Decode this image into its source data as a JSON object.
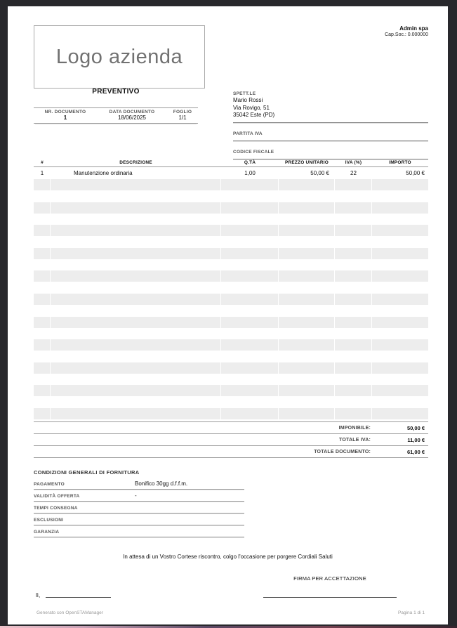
{
  "company": {
    "name": "Admin spa",
    "capital": "Cap.Soc.: 0.000000"
  },
  "logo_text": "Logo azienda",
  "doc": {
    "title": "PREVENTIVO",
    "info_headers": [
      "NR. DOCUMENTO",
      "DATA DOCUMENTO",
      "FOGLIO"
    ],
    "info_values": [
      "1",
      "18/06/2025",
      "1/1"
    ]
  },
  "customer": {
    "label": "SPETT.LE",
    "name": "Mario Rossi",
    "address": "Via Rovigo, 51",
    "city": "35042 Este (PD)",
    "vat_label": "PARTITA IVA",
    "fiscal_label": "CODICE FISCALE"
  },
  "items": {
    "headers": [
      "#",
      "DESCRIZIONE",
      "Q.TÀ",
      "PREZZO UNITARIO",
      "IVA (%)",
      "IMPORTO"
    ],
    "rows": [
      {
        "num": "1",
        "description": "Manutenzione ordinaria",
        "qty": "1,00",
        "unit_price": "50,00 €",
        "vat": "22",
        "amount": "50,00 €"
      }
    ]
  },
  "totals": [
    {
      "label": "IMPONIBILE:",
      "value": "50,00 €"
    },
    {
      "label": "TOTALE IVA:",
      "value": "11,00 €"
    },
    {
      "label": "TOTALE DOCUMENTO:",
      "value": "61,00 €"
    }
  ],
  "conditions": {
    "title": "CONDIZIONI GENERALI DI FORNITURA",
    "rows": [
      {
        "label": "PAGAMENTO",
        "value": "Bonifico 30gg d.f.f.m."
      },
      {
        "label": "VALIDITÀ OFFERTA",
        "value": "-"
      },
      {
        "label": "TEMPI CONSEGNA",
        "value": ""
      },
      {
        "label": "ESCLUSIONI",
        "value": ""
      },
      {
        "label": "GARANZIA",
        "value": ""
      }
    ]
  },
  "closing": "In attesa di un Vostro Cortese riscontro, colgo l'occasione per porgere Cordiali Saluti",
  "signature": {
    "firma_label": "FIRMA PER ACCETTAZIONE",
    "place_label": "lì,"
  },
  "footer": {
    "generator": "Generato con OpenSTAManager",
    "page": "Pagina 1 di 1"
  },
  "colors": {
    "chrome": "#28282c",
    "stripe": "#ededed",
    "line": "#999999"
  }
}
